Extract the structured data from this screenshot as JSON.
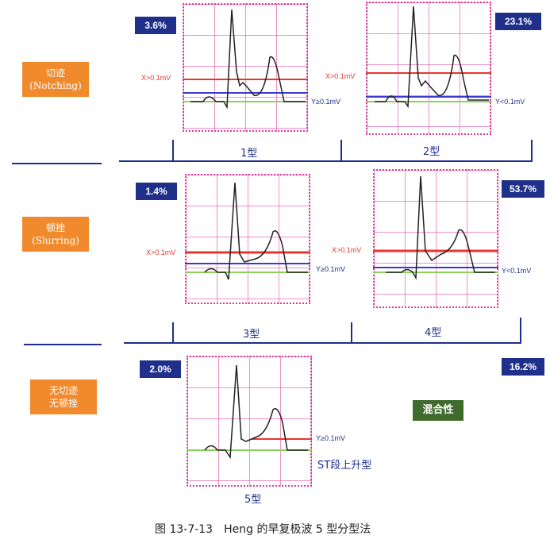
{
  "row_labels": {
    "notching": {
      "line1": "切迹",
      "line2": "(Notching)"
    },
    "slurring": {
      "line1": "顿挫",
      "line2": "(Slurring)"
    },
    "none": {
      "line1": "无切迹",
      "line2": "无顿挫"
    }
  },
  "percentages": {
    "type1": "3.6%",
    "type2": "23.1%",
    "type3": "1.4%",
    "type4": "53.7%",
    "type5": "2.0%",
    "mixed": "16.2%"
  },
  "mixed_label": "混合性",
  "type_labels": {
    "type1": "1型",
    "type2": "2型",
    "type3": "3型",
    "type4": "4型",
    "type5": "5型"
  },
  "annotations": {
    "x_gt": "X>0.1mV",
    "y_ge": "Y≥0.1mV",
    "y_lt": "Y<0.1mV",
    "st_rise": "ST段上升型"
  },
  "caption": "图 13-7-13　Heng 的早复极波 5 型分型法",
  "colors": {
    "orange": "#f08a2c",
    "navy": "#1f2f8a",
    "green": "#3f6b2d",
    "grid_pink": "#e0399a",
    "red_line": "#e8362e",
    "blue_line": "#3a3ad0",
    "green_line": "#8cd25a"
  }
}
